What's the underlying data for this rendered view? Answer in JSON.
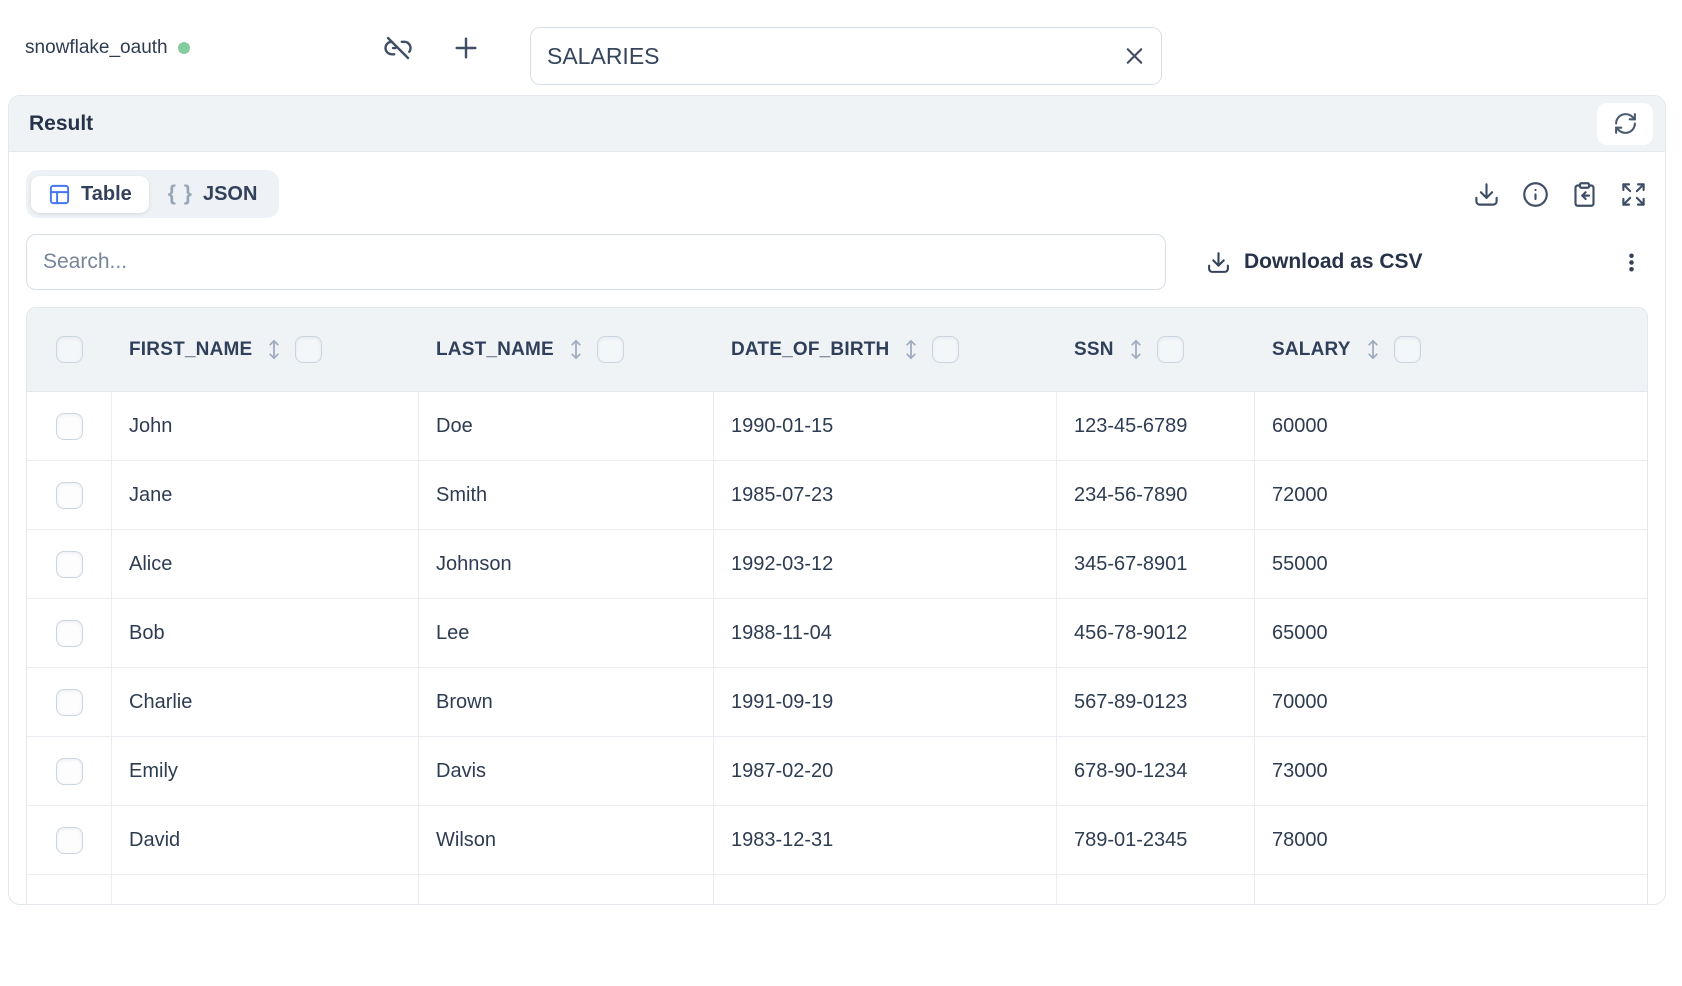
{
  "connection": {
    "name": "snowflake_oauth",
    "status": "connected",
    "status_color": "#85cda1"
  },
  "topbar": {
    "table_name_value": "SALARIES"
  },
  "panel": {
    "title": "Result"
  },
  "tabs": {
    "table_label": "Table",
    "json_label": "JSON",
    "json_icon_glyph": "{ }",
    "active_tab": "Table"
  },
  "toolbar": {
    "search_placeholder": "Search...",
    "search_value": "",
    "download_csv_label": "Download as CSV"
  },
  "table": {
    "columns": [
      "FIRST_NAME",
      "LAST_NAME",
      "DATE_OF_BIRTH",
      "SSN",
      "SALARY"
    ],
    "rows": [
      [
        "John",
        "Doe",
        "1990-01-15",
        "123-45-6789",
        "60000"
      ],
      [
        "Jane",
        "Smith",
        "1985-07-23",
        "234-56-7890",
        "72000"
      ],
      [
        "Alice",
        "Johnson",
        "1992-03-12",
        "345-67-8901",
        "55000"
      ],
      [
        "Bob",
        "Lee",
        "1988-11-04",
        "456-78-9012",
        "65000"
      ],
      [
        "Charlie",
        "Brown",
        "1991-09-19",
        "567-89-0123",
        "70000"
      ],
      [
        "Emily",
        "Davis",
        "1987-02-20",
        "678-90-1234",
        "73000"
      ],
      [
        "David",
        "Wilson",
        "1983-12-31",
        "789-01-2345",
        "78000"
      ]
    ],
    "has_partial_next_row": true
  },
  "icons": {
    "unlink-icon": "link-slash",
    "plus-icon": "+",
    "clear-icon": "x",
    "refresh-icon": "circular-arrows",
    "table-icon": "grid",
    "braces-icon": "{ }",
    "download-icon": "arrow-down-tray",
    "info-icon": "i-circle",
    "clipboard-paste-icon": "clipboard-arrow",
    "expand-icon": "four-arrows-out",
    "kebab-icon": "vertical-dots",
    "sort-icon": "up-down-arrow",
    "checkbox-icon": "rounded-square",
    "colors": {
      "accent_blue": "#4377f1",
      "green_status": "#85cda1",
      "header_bg": "#f0f3f6"
    }
  }
}
